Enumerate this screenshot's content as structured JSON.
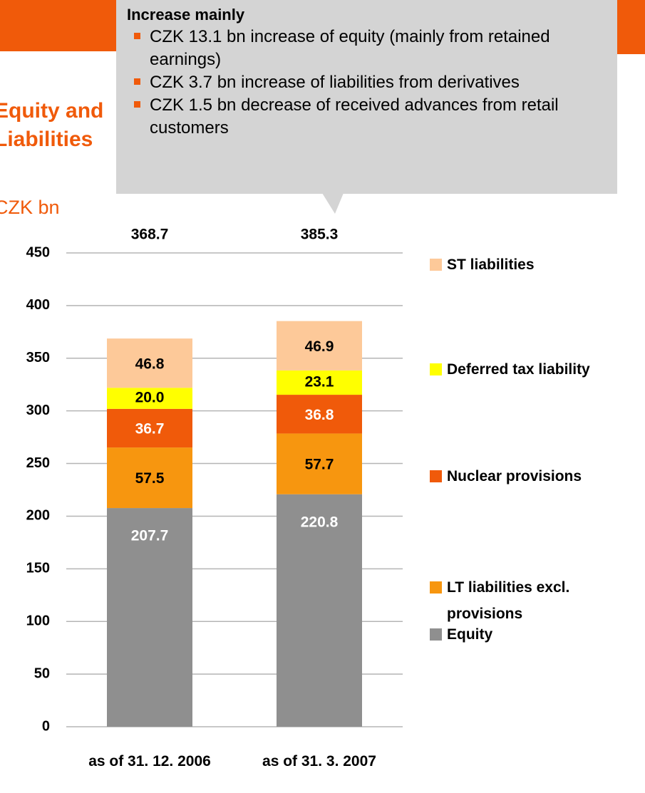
{
  "chart_data": {
    "type": "stacked_bar",
    "title": "Equity and Liabilities",
    "subtitle": "CZK bn",
    "annotation": {
      "heading": "Increase mainly",
      "items": [
        "CZK 13.1 bn increase of equity (mainly from retained earnings)",
        "CZK 3.7 bn increase of liabilities from derivatives",
        "CZK 1.5 bn decrease of received advances from retail customers"
      ]
    },
    "categories": [
      "as of 31. 12. 2006",
      "as of 31. 3. 2007"
    ],
    "totals": [
      368.7,
      385.3
    ],
    "series": [
      {
        "name": "Equity",
        "color": "#8f8f8f",
        "label_color": "#ffffff",
        "values": [
          207.7,
          220.8
        ]
      },
      {
        "name": "LT liabilities excl. provisions",
        "color": "#f7960f",
        "label_color": "#000000",
        "values": [
          57.5,
          57.7
        ]
      },
      {
        "name": "Nuclear provisions",
        "color": "#f05a0a",
        "label_color": "#ffffff",
        "values": [
          36.7,
          36.8
        ]
      },
      {
        "name": "Deferred tax liability",
        "color": "#ffff00",
        "label_color": "#000000",
        "values": [
          20.0,
          23.1
        ],
        "value_labels": [
          "20.0",
          "23.1"
        ]
      },
      {
        "name": "ST liabilities",
        "color": "#fdc999",
        "label_color": "#000000",
        "values": [
          46.8,
          46.9
        ]
      }
    ],
    "ylim": [
      0,
      450
    ],
    "yticks": [
      0,
      50,
      100,
      150,
      200,
      250,
      300,
      350,
      400,
      450
    ],
    "grid": true,
    "legend": "right"
  }
}
